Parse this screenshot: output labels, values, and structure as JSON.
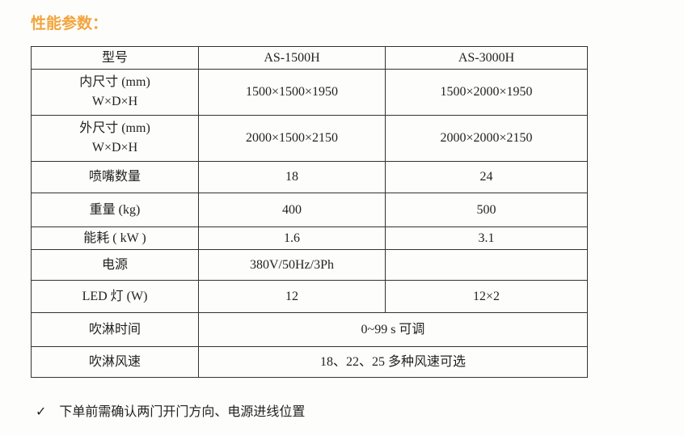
{
  "heading": "性能参数：",
  "table": {
    "header": [
      "型号",
      "AS-1500H",
      "AS-3000H"
    ],
    "rows": [
      [
        [
          "内尺寸 (mm)",
          "W×D×H"
        ],
        "1500×1500×1950",
        "1500×2000×1950"
      ],
      [
        [
          "外尺寸 (mm)",
          "W×D×H"
        ],
        "2000×1500×2150",
        "2000×2000×2150"
      ],
      [
        "喷嘴数量",
        "18",
        "24"
      ],
      [
        "重量 (kg)",
        "400",
        "500"
      ],
      [
        "能耗 ( kW )",
        "1.6",
        "3.1"
      ],
      [
        "电源",
        "380V/50Hz/3Ph"
      ],
      [
        "LED 灯 (W)",
        "12",
        "12×2"
      ],
      [
        "吹淋时间",
        "0~99 s 可调"
      ],
      [
        "吹淋风速",
        "18、22、25 多种风速可选"
      ]
    ]
  },
  "note": {
    "mark": "✓",
    "text": "下单前需确认两门开门方向、电源进线位置"
  }
}
